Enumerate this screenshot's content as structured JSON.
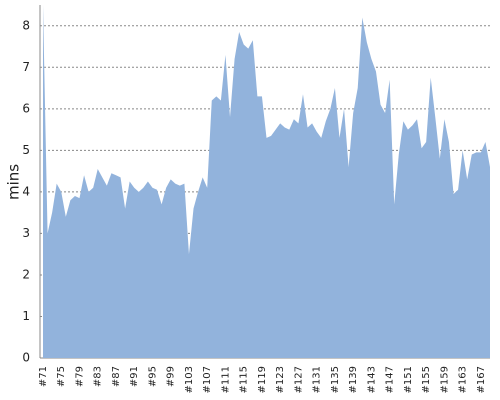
{
  "chart_data": {
    "type": "area",
    "y_label": "mins",
    "color": "#92b3dc",
    "categories": [
      "#71",
      null,
      null,
      null,
      "#75",
      null,
      null,
      null,
      "#79",
      null,
      null,
      null,
      "#83",
      null,
      null,
      null,
      "#87",
      null,
      null,
      null,
      "#91",
      null,
      null,
      null,
      "#95",
      null,
      null,
      null,
      "#99",
      null,
      null,
      null,
      "#103",
      null,
      null,
      null,
      "#107",
      null,
      null,
      null,
      "#111",
      null,
      null,
      null,
      "#115",
      null,
      null,
      null,
      "#119",
      null,
      null,
      null,
      "#123",
      null,
      null,
      null,
      "#127",
      null,
      null,
      null,
      "#131",
      null,
      null,
      null,
      "#135",
      null,
      null,
      null,
      "#139",
      null,
      null,
      null,
      "#143",
      null,
      null,
      null,
      "#147",
      null,
      null,
      null,
      "#151",
      null,
      null,
      null,
      "#155",
      null,
      null,
      null,
      "#159",
      null,
      null,
      null,
      "#163",
      null,
      null,
      null,
      "#167",
      null,
      null
    ],
    "values": [
      8.5,
      3.0,
      3.5,
      4.2,
      4.0,
      3.4,
      3.8,
      3.9,
      3.85,
      4.4,
      4.0,
      4.1,
      4.55,
      4.35,
      4.15,
      4.45,
      4.4,
      4.35,
      3.6,
      4.25,
      4.1,
      4.0,
      4.1,
      4.25,
      4.1,
      4.05,
      3.7,
      4.1,
      4.3,
      4.2,
      4.15,
      4.2,
      2.5,
      3.6,
      4.0,
      4.35,
      4.1,
      6.2,
      6.3,
      6.2,
      7.3,
      5.8,
      7.2,
      7.85,
      7.55,
      7.45,
      7.65,
      6.3,
      6.3,
      5.3,
      5.35,
      5.5,
      5.65,
      5.55,
      5.5,
      5.75,
      5.65,
      6.35,
      5.55,
      5.65,
      5.45,
      5.3,
      5.7,
      6.0,
      6.5,
      5.3,
      6.0,
      4.6,
      5.9,
      6.5,
      8.2,
      7.6,
      7.2,
      6.9,
      6.1,
      5.9,
      6.7,
      3.7,
      4.9,
      5.7,
      5.5,
      5.6,
      5.75,
      5.05,
      5.2,
      6.75,
      5.8,
      4.8,
      5.75,
      5.2,
      3.95,
      4.05,
      5.0,
      4.3,
      4.9,
      4.95,
      4.95,
      5.2,
      4.6
    ],
    "ylim": [
      0,
      8.5
    ],
    "yticks": [
      0,
      1,
      2,
      3,
      4,
      5,
      6,
      7,
      8
    ],
    "grid": true
  }
}
